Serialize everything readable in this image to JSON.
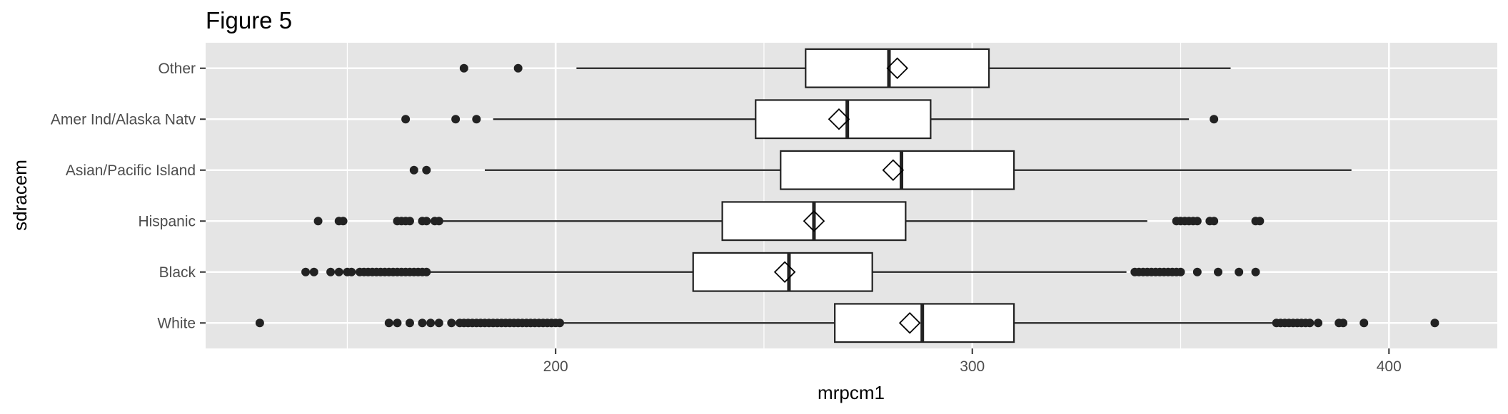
{
  "chart_data": {
    "type": "boxplot",
    "orientation": "horizontal",
    "title": "Figure 5",
    "xlabel": "mrpcm1",
    "ylabel": "sdracem",
    "xlim": [
      116,
      426
    ],
    "x_ticks": [
      200,
      300,
      400
    ],
    "x_minor_ticks": [
      150,
      250,
      350
    ],
    "grid": true,
    "legend": "none",
    "colors": {
      "panel": "#e5e5e5",
      "grid": "#ffffff",
      "box_fill": "#ffffff",
      "stroke": "#222222",
      "point": "#222222",
      "text": "#4d4d4d",
      "title": "#000000"
    },
    "categories": [
      "Other",
      "Amer Ind/Alaska Natv",
      "Asian/Pacific Island",
      "Hispanic",
      "Black",
      "White"
    ],
    "boxes": [
      {
        "category": "Other",
        "whisker_low": 205,
        "q1": 260,
        "median": 280,
        "q3": 304,
        "whisker_high": 362,
        "mean": 282,
        "outliers": [
          178,
          191
        ]
      },
      {
        "category": "Amer Ind/Alaska Natv",
        "whisker_low": 185,
        "q1": 248,
        "median": 270,
        "q3": 290,
        "whisker_high": 352,
        "mean": 268,
        "outliers": [
          164,
          176,
          181,
          358
        ]
      },
      {
        "category": "Asian/Pacific Island",
        "whisker_low": 183,
        "q1": 254,
        "median": 283,
        "q3": 310,
        "whisker_high": 391,
        "mean": 281,
        "outliers": [
          166,
          169
        ]
      },
      {
        "category": "Hispanic",
        "whisker_low": 172,
        "q1": 240,
        "median": 262,
        "q3": 284,
        "whisker_high": 342,
        "mean": 262,
        "outliers": [
          143,
          148,
          149,
          162,
          163,
          164,
          165,
          168,
          169,
          171,
          172,
          349,
          350,
          351,
          352,
          353,
          354,
          357,
          358,
          368,
          369
        ]
      },
      {
        "category": "Black",
        "whisker_low": 169,
        "q1": 233,
        "median": 256,
        "q3": 276,
        "whisker_high": 337,
        "mean": 255,
        "outliers": [
          140,
          142,
          146,
          148,
          150,
          151,
          153,
          154,
          155,
          156,
          157,
          158,
          159,
          160,
          161,
          162,
          163,
          164,
          165,
          166,
          167,
          168,
          169,
          339,
          340,
          341,
          342,
          343,
          344,
          345,
          346,
          347,
          348,
          349,
          350,
          354,
          359,
          364,
          368
        ]
      },
      {
        "category": "White",
        "whisker_low": 202,
        "q1": 267,
        "median": 288,
        "q3": 310,
        "whisker_high": 372,
        "mean": 285,
        "outliers": [
          129,
          160,
          162,
          165,
          168,
          170,
          172,
          175,
          177,
          178,
          179,
          180,
          181,
          182,
          183,
          184,
          185,
          186,
          187,
          188,
          189,
          190,
          191,
          192,
          193,
          194,
          195,
          196,
          197,
          198,
          199,
          200,
          201,
          373,
          374,
          375,
          376,
          377,
          378,
          379,
          380,
          381,
          383,
          388,
          389,
          394,
          411
        ]
      }
    ]
  }
}
